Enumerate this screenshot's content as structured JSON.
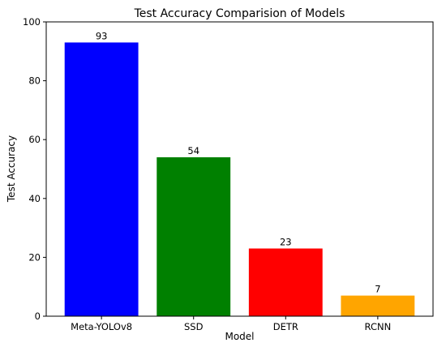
{
  "chart_data": {
    "type": "bar",
    "title": "Test Accuracy Comparision of Models",
    "xlabel": "Model",
    "ylabel": "Test Accuracy",
    "categories": [
      "Meta-YOLOv8",
      "SSD",
      "DETR",
      "RCNN"
    ],
    "values": [
      93,
      54,
      23,
      7
    ],
    "data_labels": [
      "93",
      "54",
      "23",
      "7"
    ],
    "colors": [
      "#0000ff",
      "#008000",
      "#ff0000",
      "#ffa500"
    ],
    "ylim": [
      0,
      100
    ],
    "yticks": [
      0,
      20,
      40,
      60,
      80,
      100
    ],
    "grid": false,
    "legend": "none"
  }
}
